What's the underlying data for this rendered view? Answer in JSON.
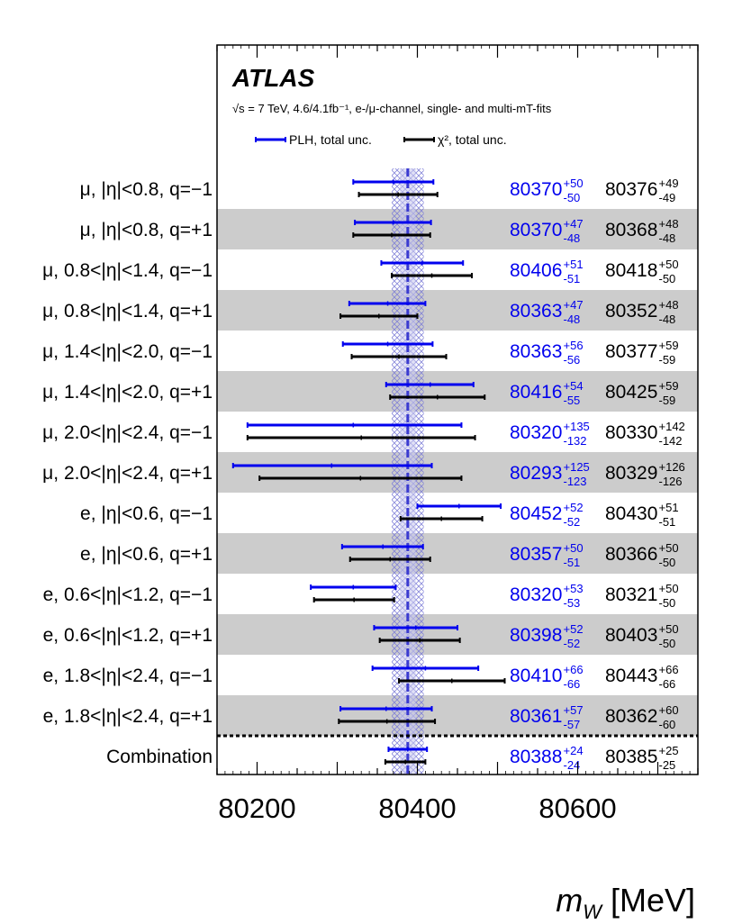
{
  "chart_data": {
    "type": "forest",
    "experiment": "ATLAS",
    "subtitle": "√s = 7 TeV, 4.6/4.1fb⁻¹, e-/μ-channel, single- and multi-mT-fits",
    "xlabel_var": "m",
    "xlabel_sub": "W",
    "xlabel_unit": " [MeV]",
    "xlim": [
      80150,
      80750
    ],
    "xticks": [
      80200,
      80400,
      80600
    ],
    "combination_center": 80388,
    "combination_err": 24,
    "colors": {
      "plh": "#0000ee",
      "chi2": "#000000",
      "band": "#7b7bd6",
      "shade": "#cccccc"
    },
    "series": [
      {
        "key": "plh",
        "name": "PLH, total unc.",
        "color": "#0000ee"
      },
      {
        "key": "chi2",
        "name": "χ², total unc.",
        "color": "#000000"
      }
    ],
    "rows": [
      {
        "label": "μ, |η|<0.8, q=−1",
        "shaded": false,
        "plh": {
          "value": 80370,
          "up": 50,
          "down": 50
        },
        "chi2": {
          "value": 80376,
          "up": 49,
          "down": 49
        }
      },
      {
        "label": "μ, |η|<0.8, q=+1",
        "shaded": true,
        "plh": {
          "value": 80370,
          "up": 47,
          "down": 48
        },
        "chi2": {
          "value": 80368,
          "up": 48,
          "down": 48
        }
      },
      {
        "label": "μ, 0.8<|η|<1.4, q=−1",
        "shaded": false,
        "plh": {
          "value": 80406,
          "up": 51,
          "down": 51
        },
        "chi2": {
          "value": 80418,
          "up": 50,
          "down": 50
        }
      },
      {
        "label": "μ, 0.8<|η|<1.4, q=+1",
        "shaded": true,
        "plh": {
          "value": 80363,
          "up": 47,
          "down": 48
        },
        "chi2": {
          "value": 80352,
          "up": 48,
          "down": 48
        }
      },
      {
        "label": "μ, 1.4<|η|<2.0, q=−1",
        "shaded": false,
        "plh": {
          "value": 80363,
          "up": 56,
          "down": 56
        },
        "chi2": {
          "value": 80377,
          "up": 59,
          "down": 59
        }
      },
      {
        "label": "μ, 1.4<|η|<2.0, q=+1",
        "shaded": true,
        "plh": {
          "value": 80416,
          "up": 54,
          "down": 55
        },
        "chi2": {
          "value": 80425,
          "up": 59,
          "down": 59
        }
      },
      {
        "label": "μ, 2.0<|η|<2.4, q=−1",
        "shaded": false,
        "plh": {
          "value": 80320,
          "up": 135,
          "down": 132
        },
        "chi2": {
          "value": 80330,
          "up": 142,
          "down": 142
        }
      },
      {
        "label": "μ, 2.0<|η|<2.4, q=+1",
        "shaded": true,
        "plh": {
          "value": 80293,
          "up": 125,
          "down": 123
        },
        "chi2": {
          "value": 80329,
          "up": 126,
          "down": 126
        }
      },
      {
        "label": "e, |η|<0.6, q=−1",
        "shaded": false,
        "plh": {
          "value": 80452,
          "up": 52,
          "down": 52
        },
        "chi2": {
          "value": 80430,
          "up": 51,
          "down": 51
        }
      },
      {
        "label": "e, |η|<0.6, q=+1",
        "shaded": true,
        "plh": {
          "value": 80357,
          "up": 50,
          "down": 51
        },
        "chi2": {
          "value": 80366,
          "up": 50,
          "down": 50
        }
      },
      {
        "label": "e, 0.6<|η|<1.2, q=−1",
        "shaded": false,
        "plh": {
          "value": 80320,
          "up": 53,
          "down": 53
        },
        "chi2": {
          "value": 80321,
          "up": 50,
          "down": 50
        }
      },
      {
        "label": "e, 0.6<|η|<1.2, q=+1",
        "shaded": true,
        "plh": {
          "value": 80398,
          "up": 52,
          "down": 52
        },
        "chi2": {
          "value": 80403,
          "up": 50,
          "down": 50
        }
      },
      {
        "label": "e, 1.8<|η|<2.4, q=−1",
        "shaded": false,
        "plh": {
          "value": 80410,
          "up": 66,
          "down": 66
        },
        "chi2": {
          "value": 80443,
          "up": 66,
          "down": 66
        }
      },
      {
        "label": "e, 1.8<|η|<2.4, q=+1",
        "shaded": true,
        "plh": {
          "value": 80361,
          "up": 57,
          "down": 57
        },
        "chi2": {
          "value": 80362,
          "up": 60,
          "down": 60
        }
      },
      {
        "label": "Combination",
        "shaded": false,
        "combination": true,
        "plh": {
          "value": 80388,
          "up": 24,
          "down": 24
        },
        "chi2": {
          "value": 80385,
          "up": 25,
          "down": 25
        }
      }
    ]
  }
}
